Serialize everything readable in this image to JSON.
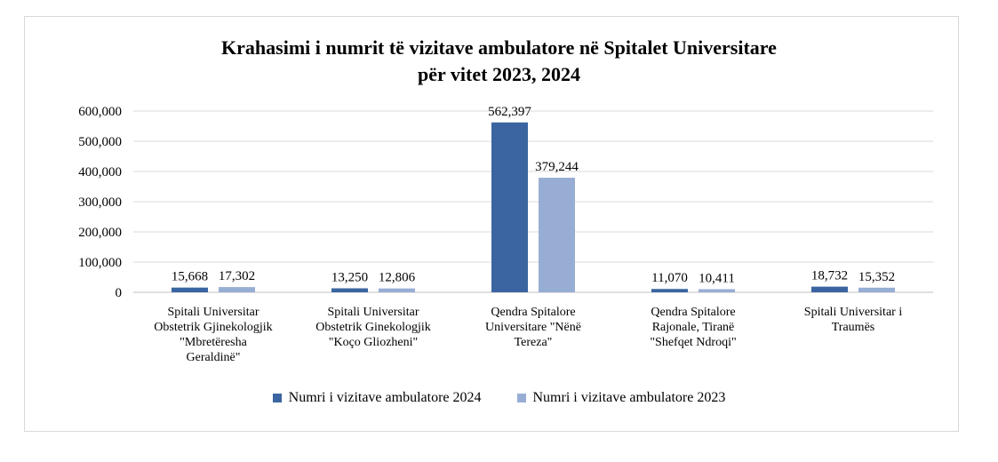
{
  "title_line1": "Krahasimi i numrit të vizitave ambulatore në Spitalet Universitare",
  "title_line2": "për vitet 2023, 2024",
  "colors": {
    "series_2024": "#3a65a0",
    "series_2023": "#98add4"
  },
  "chart_data": {
    "type": "bar",
    "title": "Krahasimi i numrit të vizitave ambulatore në Spitalet Universitare për vitet 2023, 2024",
    "categories": [
      [
        "Spitali Universitar",
        "Obstetrik Gjinekologjik",
        "\"Mbretëresha",
        "Geraldinë\""
      ],
      [
        "Spitali Universitar",
        "Obstetrik Ginekologjik",
        "\"Koço Gliozheni\""
      ],
      [
        "Qendra Spitalore",
        "Universitare \"Nënë",
        "Tereza\""
      ],
      [
        "Qendra Spitalore",
        "Rajonale, Tiranë",
        "\"Shefqet Ndroqi\""
      ],
      [
        "Spitali Universitar i",
        "Traumës"
      ]
    ],
    "series": [
      {
        "name": "Numri i vizitave ambulatore 2024",
        "values": [
          15668,
          13250,
          562397,
          11070,
          18732
        ],
        "labels": [
          "15,668",
          "13,250",
          "562,397",
          "11,070",
          "18,732"
        ]
      },
      {
        "name": "Numri i vizitave ambulatore 2023",
        "values": [
          17302,
          12806,
          379244,
          10411,
          15352
        ],
        "labels": [
          "17,302",
          "12,806",
          "379,244",
          "10,411",
          "15,352"
        ]
      }
    ],
    "y_ticks": [
      "0",
      "100,000",
      "200,000",
      "300,000",
      "400,000",
      "500,000",
      "600,000"
    ],
    "ylim": [
      0,
      600000
    ],
    "grid": true,
    "legend_position": "bottom"
  }
}
